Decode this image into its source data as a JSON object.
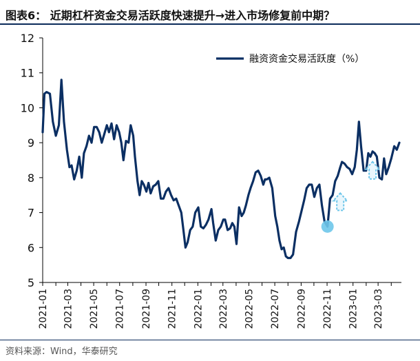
{
  "header": {
    "title": "图表6： 近期杠杆资金交易活跃度快速提升→进入市场修复前中期？"
  },
  "footer": {
    "source": "资料来源：Wind，华泰研究"
  },
  "colors": {
    "line": "#0b2f63",
    "highlight": "#6ec6ea",
    "axis": "#000000"
  },
  "chart_data": {
    "type": "line",
    "ylim": [
      5,
      12
    ],
    "y_ticks": [
      5,
      6,
      7,
      8,
      9,
      10,
      11,
      12
    ],
    "x_tick_labels": [
      "2021-01",
      "2021-03",
      "2021-05",
      "2021-07",
      "2021-09",
      "2021-11",
      "2022-01",
      "2022-03",
      "2022-05",
      "2022-07",
      "2022-09",
      "2022-11",
      "2023-01",
      "2023-03"
    ],
    "legend": {
      "position": "top-right",
      "label": "融资资金交易活跃度（%）"
    },
    "series": [
      {
        "name": "融资资金交易活跃度（%）",
        "points": [
          [
            "2021-01-01",
            9.3
          ],
          [
            "2021-01-05",
            10.4
          ],
          [
            "2021-01-10",
            10.45
          ],
          [
            "2021-01-18",
            10.4
          ],
          [
            "2021-01-25",
            9.6
          ],
          [
            "2021-02-01",
            9.2
          ],
          [
            "2021-02-08",
            9.5
          ],
          [
            "2021-02-14",
            10.8
          ],
          [
            "2021-02-20",
            9.6
          ],
          [
            "2021-02-27",
            8.8
          ],
          [
            "2021-03-05",
            8.3
          ],
          [
            "2021-03-10",
            8.35
          ],
          [
            "2021-03-16",
            7.95
          ],
          [
            "2021-03-22",
            8.2
          ],
          [
            "2021-03-28",
            8.6
          ],
          [
            "2021-04-03",
            8.0
          ],
          [
            "2021-04-08",
            8.7
          ],
          [
            "2021-04-14",
            8.9
          ],
          [
            "2021-04-20",
            9.2
          ],
          [
            "2021-04-26",
            9.0
          ],
          [
            "2021-05-02",
            9.45
          ],
          [
            "2021-05-08",
            9.45
          ],
          [
            "2021-05-14",
            9.3
          ],
          [
            "2021-05-20",
            9.0
          ],
          [
            "2021-05-26",
            9.25
          ],
          [
            "2021-06-01",
            9.5
          ],
          [
            "2021-06-06",
            9.3
          ],
          [
            "2021-06-12",
            9.55
          ],
          [
            "2021-06-18",
            9.1
          ],
          [
            "2021-06-24",
            9.5
          ],
          [
            "2021-06-30",
            9.3
          ],
          [
            "2021-07-05",
            9.0
          ],
          [
            "2021-07-10",
            8.5
          ],
          [
            "2021-07-16",
            9.05
          ],
          [
            "2021-07-22",
            9.0
          ],
          [
            "2021-07-27",
            9.5
          ],
          [
            "2021-08-02",
            9.2
          ],
          [
            "2021-08-06",
            8.6
          ],
          [
            "2021-08-12",
            7.9
          ],
          [
            "2021-08-17",
            7.5
          ],
          [
            "2021-08-22",
            7.9
          ],
          [
            "2021-08-27",
            7.8
          ],
          [
            "2021-09-02",
            7.6
          ],
          [
            "2021-09-07",
            7.85
          ],
          [
            "2021-09-12",
            7.55
          ],
          [
            "2021-09-18",
            7.75
          ],
          [
            "2021-09-24",
            7.8
          ],
          [
            "2021-09-30",
            7.9
          ],
          [
            "2021-10-06",
            7.4
          ],
          [
            "2021-10-12",
            7.4
          ],
          [
            "2021-10-18",
            7.6
          ],
          [
            "2021-10-24",
            7.7
          ],
          [
            "2021-10-30",
            7.5
          ],
          [
            "2021-11-05",
            7.35
          ],
          [
            "2021-11-11",
            7.4
          ],
          [
            "2021-11-17",
            7.2
          ],
          [
            "2021-11-23",
            7.0
          ],
          [
            "2021-11-28",
            6.5
          ],
          [
            "2021-12-03",
            6.0
          ],
          [
            "2021-12-08",
            6.15
          ],
          [
            "2021-12-14",
            6.5
          ],
          [
            "2021-12-20",
            6.6
          ],
          [
            "2021-12-26",
            7.0
          ],
          [
            "2022-01-02",
            7.15
          ],
          [
            "2022-01-08",
            6.6
          ],
          [
            "2022-01-14",
            6.55
          ],
          [
            "2022-01-20",
            6.65
          ],
          [
            "2022-01-26",
            6.8
          ],
          [
            "2022-02-02",
            7.1
          ],
          [
            "2022-02-06",
            6.7
          ],
          [
            "2022-02-12",
            6.2
          ],
          [
            "2022-02-18",
            6.5
          ],
          [
            "2022-02-24",
            6.6
          ],
          [
            "2022-03-02",
            6.8
          ],
          [
            "2022-03-06",
            6.8
          ],
          [
            "2022-03-12",
            6.5
          ],
          [
            "2022-03-18",
            6.55
          ],
          [
            "2022-03-23",
            6.7
          ],
          [
            "2022-03-28",
            6.6
          ],
          [
            "2022-04-02",
            6.1
          ],
          [
            "2022-04-08",
            7.15
          ],
          [
            "2022-04-14",
            6.9
          ],
          [
            "2022-04-19",
            7.0
          ],
          [
            "2022-04-24",
            7.2
          ],
          [
            "2022-04-30",
            7.5
          ],
          [
            "2022-05-05",
            7.7
          ],
          [
            "2022-05-11",
            7.9
          ],
          [
            "2022-05-17",
            8.15
          ],
          [
            "2022-05-23",
            8.2
          ],
          [
            "2022-05-29",
            8.05
          ],
          [
            "2022-06-04",
            7.8
          ],
          [
            "2022-06-08",
            7.95
          ],
          [
            "2022-06-12",
            7.95
          ],
          [
            "2022-06-18",
            8.0
          ],
          [
            "2022-06-25",
            7.7
          ],
          [
            "2022-07-02",
            6.9
          ],
          [
            "2022-07-07",
            6.6
          ],
          [
            "2022-07-12",
            6.2
          ],
          [
            "2022-07-17",
            5.95
          ],
          [
            "2022-07-22",
            6.0
          ],
          [
            "2022-07-27",
            5.75
          ],
          [
            "2022-08-01",
            5.7
          ],
          [
            "2022-08-07",
            5.7
          ],
          [
            "2022-08-13",
            5.8
          ],
          [
            "2022-08-20",
            6.45
          ],
          [
            "2022-08-27",
            6.75
          ],
          [
            "2022-09-02",
            7.05
          ],
          [
            "2022-09-08",
            7.35
          ],
          [
            "2022-09-14",
            7.7
          ],
          [
            "2022-09-20",
            7.8
          ],
          [
            "2022-09-26",
            7.8
          ],
          [
            "2022-10-02",
            7.45
          ],
          [
            "2022-10-08",
            7.7
          ],
          [
            "2022-10-14",
            7.8
          ],
          [
            "2022-10-20",
            7.2
          ],
          [
            "2022-10-26",
            6.75
          ],
          [
            "2022-11-02",
            6.6
          ],
          [
            "2022-11-08",
            7.4
          ],
          [
            "2022-11-14",
            7.5
          ],
          [
            "2022-11-20",
            7.9
          ],
          [
            "2022-11-26",
            8.05
          ],
          [
            "2022-12-02",
            8.3
          ],
          [
            "2022-12-06",
            8.45
          ],
          [
            "2022-12-12",
            8.4
          ],
          [
            "2022-12-18",
            8.3
          ],
          [
            "2022-12-24",
            8.25
          ],
          [
            "2022-12-30",
            8.1
          ],
          [
            "2023-01-05",
            8.3
          ],
          [
            "2023-01-10",
            8.8
          ],
          [
            "2023-01-15",
            9.6
          ],
          [
            "2023-01-20",
            8.9
          ],
          [
            "2023-01-26",
            8.2
          ],
          [
            "2023-02-01",
            8.2
          ],
          [
            "2023-02-06",
            8.7
          ],
          [
            "2023-02-11",
            8.6
          ],
          [
            "2023-02-16",
            8.75
          ],
          [
            "2023-02-21",
            8.7
          ],
          [
            "2023-02-26",
            8.6
          ],
          [
            "2023-03-04",
            8.0
          ],
          [
            "2023-03-10",
            7.95
          ],
          [
            "2023-03-15",
            8.55
          ],
          [
            "2023-03-20",
            8.1
          ],
          [
            "2023-03-26",
            8.3
          ],
          [
            "2023-04-01",
            8.55
          ],
          [
            "2023-04-08",
            8.9
          ],
          [
            "2023-04-14",
            8.8
          ],
          [
            "2023-04-20",
            9.0
          ]
        ]
      }
    ],
    "highlight_point": [
      "2022-11-02",
      6.6
    ],
    "annotations": [
      {
        "type": "arrow-up",
        "at": [
          "2022-12-02",
          7.3
        ]
      },
      {
        "type": "arrow-up",
        "at": [
          "2023-02-16",
          8.2
        ]
      }
    ]
  }
}
